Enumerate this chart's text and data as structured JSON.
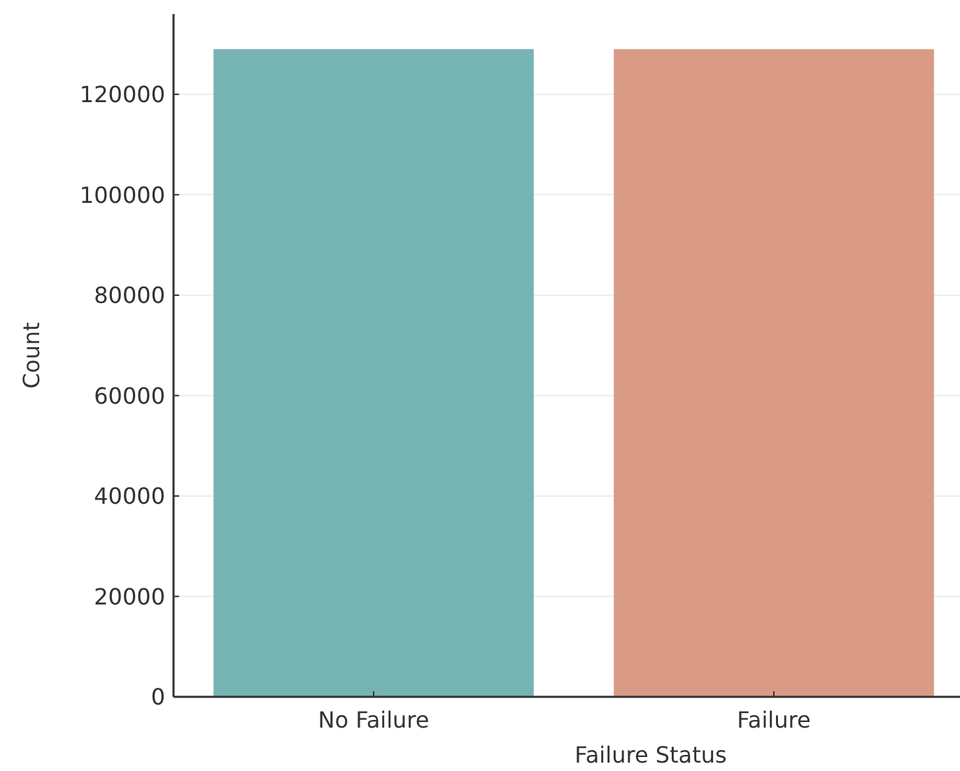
{
  "chart_data": {
    "type": "bar",
    "xlabel": "Failure Status",
    "ylabel": "Count",
    "categories": [
      "No Failure",
      "Failure"
    ],
    "values": [
      129000,
      129000
    ],
    "colors": [
      "#76b3b3",
      "#d99b85"
    ],
    "ylim": [
      0,
      136000
    ],
    "yticks": [
      0,
      20000,
      40000,
      60000,
      80000,
      100000,
      120000
    ],
    "grid": "y"
  }
}
